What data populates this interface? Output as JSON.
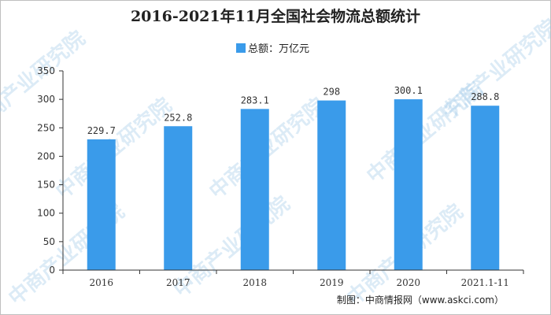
{
  "chart_data": {
    "type": "bar",
    "title": "2016-2021年11月全国社会物流总额统计",
    "categories": [
      "2016",
      "2017",
      "2018",
      "2019",
      "2020",
      "2021.1-11"
    ],
    "series": [
      {
        "name": "总额：万亿元",
        "values": [
          229.7,
          252.8,
          283.1,
          298,
          300.1,
          288.8
        ]
      }
    ],
    "data_labels": [
      "229.7",
      "252.8",
      "283.1",
      "298",
      "300.1",
      "288.8"
    ],
    "y_ticks": [
      "0",
      "50",
      "100",
      "150",
      "200",
      "250",
      "300",
      "350"
    ],
    "ylim": [
      0,
      350
    ],
    "xlabel": "",
    "ylabel": "",
    "legend_position": "top-center",
    "grid": false,
    "bar_color": "#3a9bea"
  },
  "source_note": "制图：中商情报网（www.askci.com）",
  "watermark": "中商产业研究院"
}
